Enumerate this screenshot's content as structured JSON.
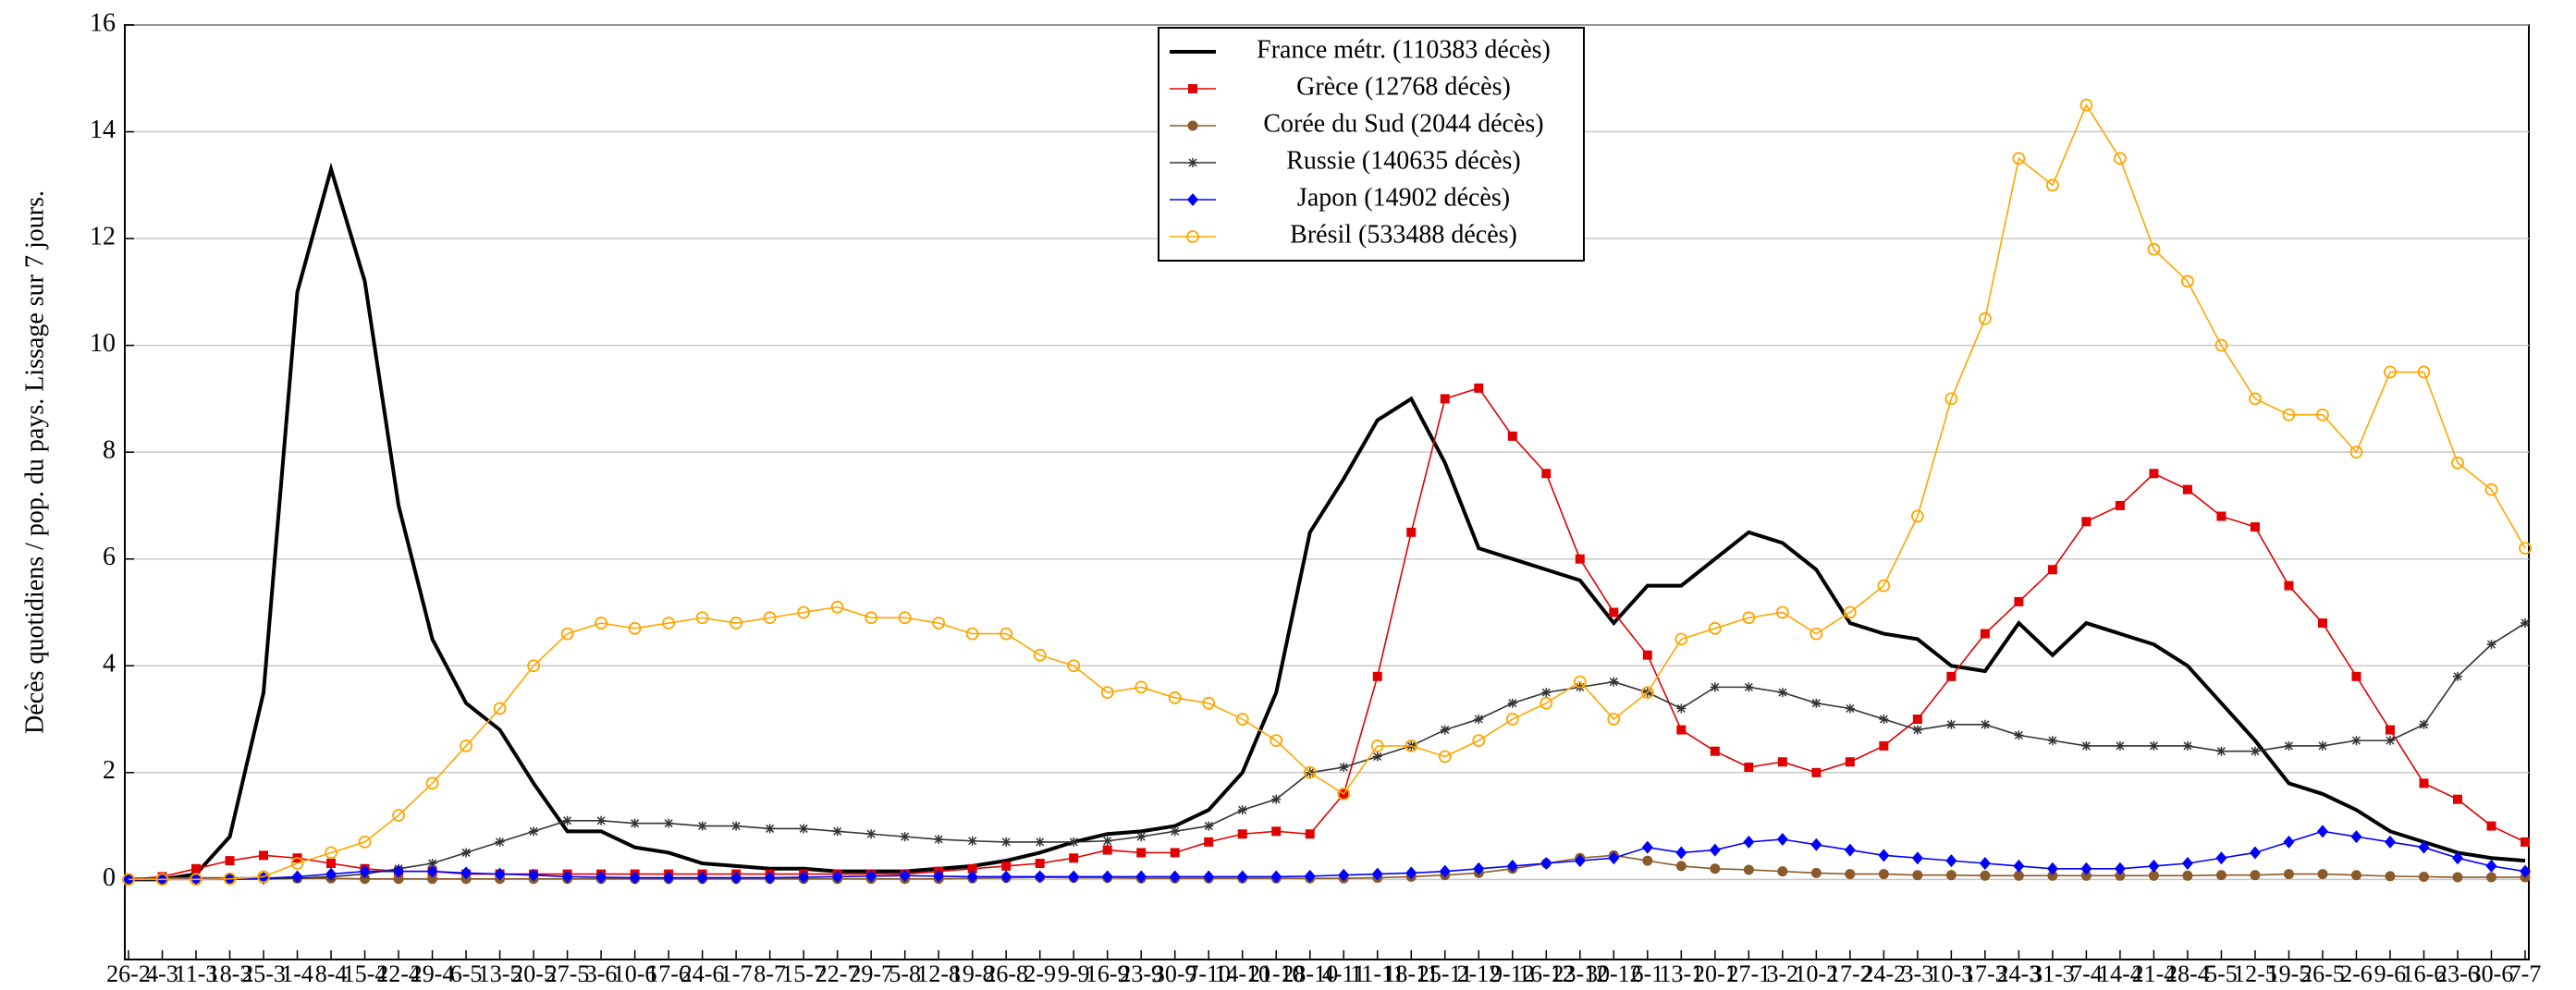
{
  "chart_data": {
    "type": "line",
    "y_label": "Décès quotidiens / pop. du pays. Lissage sur 7 jours.",
    "categories": [
      "26-2",
      "4-3",
      "11-3",
      "18-3",
      "25-3",
      "1-4",
      "8-4",
      "15-4",
      "22-4",
      "29-4",
      "6-5",
      "13-5",
      "20-5",
      "27-5",
      "3-6",
      "10-6",
      "17-6",
      "24-6",
      "1-7",
      "8-7",
      "15-7",
      "22-7",
      "29-7",
      "5-8",
      "12-8",
      "19-8",
      "26-8",
      "2-9",
      "9-9",
      "16-9",
      "23-9",
      "30-9",
      "7-10",
      "14-10",
      "21-10",
      "28-10",
      "4-11",
      "11-11",
      "18-11",
      "25-11",
      "2-12",
      "9-12",
      "16-12",
      "23-12",
      "30-12",
      "6-1",
      "13-1",
      "20-1",
      "27-1",
      "3-2",
      "10-2",
      "17-2",
      "24-2",
      "3-3",
      "10-3",
      "17-3",
      "24-3",
      "31-3",
      "7-4",
      "14-4",
      "21-4",
      "28-4",
      "5-5",
      "12-5",
      "19-5",
      "26-5",
      "2-6",
      "9-6",
      "16-6",
      "23-6",
      "30-6",
      "7-7"
    ],
    "ylim": [
      -1.5,
      16
    ],
    "yticks": [
      0,
      2,
      4,
      6,
      8,
      10,
      12,
      14,
      16
    ],
    "grid": true,
    "legend": "top",
    "series": [
      {
        "name": "France métr. (110383 décès)",
        "color": "#000000",
        "marker": "none",
        "values": [
          0,
          0,
          0.1,
          0.8,
          3.5,
          11,
          13.3,
          11.2,
          7,
          4.5,
          3.3,
          2.8,
          1.8,
          0.9,
          0.9,
          0.6,
          0.5,
          0.3,
          0.25,
          0.2,
          0.2,
          0.15,
          0.15,
          0.15,
          0.2,
          0.25,
          0.35,
          0.5,
          0.7,
          0.85,
          0.9,
          1.0,
          1.3,
          2.0,
          3.5,
          6.5,
          7.5,
          8.6,
          9.0,
          7.8,
          6.2,
          6.0,
          5.8,
          5.6,
          4.8,
          5.5,
          5.5,
          6.0,
          6.5,
          6.3,
          5.8,
          4.8,
          4.6,
          4.5,
          4.0,
          3.9,
          4.8,
          4.2,
          4.8,
          4.6,
          4.4,
          4.0,
          3.3,
          2.6,
          1.8,
          1.6,
          1.3,
          0.9,
          0.7,
          0.5,
          0.4,
          0.35
        ]
      },
      {
        "name": "Grèce (12768 décès)",
        "color": "#e00000",
        "marker": "square",
        "values": [
          0,
          0.05,
          0.2,
          0.35,
          0.45,
          0.4,
          0.3,
          0.2,
          0.15,
          0.15,
          0.1,
          0.1,
          0.1,
          0.1,
          0.1,
          0.1,
          0.1,
          0.1,
          0.1,
          0.1,
          0.1,
          0.1,
          0.1,
          0.1,
          0.15,
          0.2,
          0.25,
          0.3,
          0.4,
          0.55,
          0.5,
          0.5,
          0.7,
          0.85,
          0.9,
          0.85,
          1.6,
          3.8,
          6.5,
          9.0,
          9.2,
          8.3,
          7.6,
          6.0,
          5.0,
          4.2,
          2.8,
          2.4,
          2.1,
          2.2,
          2.0,
          2.2,
          2.5,
          3.0,
          3.8,
          4.6,
          5.2,
          5.8,
          6.7,
          7.0,
          7.6,
          7.3,
          6.8,
          6.6,
          5.5,
          4.8,
          3.8,
          2.8,
          1.8,
          1.5,
          1.0,
          0.7
        ]
      },
      {
        "name": "Corée du Sud (2044 décès)",
        "color": "#8b5a2b",
        "marker": "circle",
        "values": [
          0,
          0.02,
          0.03,
          0.03,
          0.03,
          0.02,
          0.02,
          0.01,
          0.01,
          0.01,
          0.01,
          0.01,
          0.01,
          0.01,
          0.01,
          0.01,
          0.01,
          0.01,
          0.01,
          0.01,
          0.01,
          0.01,
          0.01,
          0.01,
          0.01,
          0.02,
          0.03,
          0.04,
          0.03,
          0.03,
          0.02,
          0.02,
          0.02,
          0.02,
          0.02,
          0.02,
          0.02,
          0.03,
          0.05,
          0.08,
          0.12,
          0.2,
          0.3,
          0.4,
          0.45,
          0.35,
          0.25,
          0.2,
          0.18,
          0.15,
          0.12,
          0.1,
          0.1,
          0.08,
          0.08,
          0.07,
          0.07,
          0.07,
          0.07,
          0.07,
          0.07,
          0.07,
          0.08,
          0.08,
          0.1,
          0.1,
          0.08,
          0.06,
          0.05,
          0.04,
          0.04,
          0.04
        ]
      },
      {
        "name": "Russie (140635 décès)",
        "color": "#333333",
        "marker": "star",
        "values": [
          0,
          0,
          0,
          0,
          0.01,
          0.02,
          0.05,
          0.1,
          0.2,
          0.3,
          0.5,
          0.7,
          0.9,
          1.1,
          1.1,
          1.05,
          1.05,
          1.0,
          1.0,
          0.95,
          0.95,
          0.9,
          0.85,
          0.8,
          0.75,
          0.72,
          0.7,
          0.7,
          0.7,
          0.72,
          0.8,
          0.9,
          1.0,
          1.3,
          1.5,
          2.0,
          2.1,
          2.3,
          2.5,
          2.8,
          3.0,
          3.3,
          3.5,
          3.6,
          3.7,
          3.5,
          3.2,
          3.6,
          3.6,
          3.5,
          3.3,
          3.2,
          3.0,
          2.8,
          2.9,
          2.9,
          2.7,
          2.6,
          2.5,
          2.5,
          2.5,
          2.5,
          2.4,
          2.4,
          2.5,
          2.5,
          2.6,
          2.6,
          2.9,
          3.8,
          4.4,
          4.8
        ]
      },
      {
        "name": "Japon (14902 décès)",
        "color": "#0000ff",
        "marker": "diamond",
        "values": [
          0,
          0,
          0.01,
          0.01,
          0.02,
          0.05,
          0.1,
          0.15,
          0.15,
          0.15,
          0.12,
          0.1,
          0.08,
          0.05,
          0.04,
          0.03,
          0.03,
          0.03,
          0.03,
          0.03,
          0.04,
          0.05,
          0.06,
          0.07,
          0.06,
          0.05,
          0.05,
          0.05,
          0.05,
          0.05,
          0.05,
          0.05,
          0.05,
          0.05,
          0.05,
          0.06,
          0.08,
          0.1,
          0.12,
          0.15,
          0.2,
          0.25,
          0.3,
          0.35,
          0.4,
          0.6,
          0.5,
          0.55,
          0.7,
          0.75,
          0.65,
          0.55,
          0.45,
          0.4,
          0.35,
          0.3,
          0.25,
          0.2,
          0.2,
          0.2,
          0.25,
          0.3,
          0.4,
          0.5,
          0.7,
          0.9,
          0.8,
          0.7,
          0.6,
          0.4,
          0.25,
          0.15
        ]
      },
      {
        "name": "Brésil (533488 décès)",
        "color": "#ffa500",
        "marker": "open-circle",
        "values": [
          0,
          0,
          0,
          0.01,
          0.05,
          0.3,
          0.5,
          0.7,
          1.2,
          1.8,
          2.5,
          3.2,
          4.0,
          4.6,
          4.8,
          4.7,
          4.8,
          4.9,
          4.8,
          4.9,
          5.0,
          5.1,
          4.9,
          4.9,
          4.8,
          4.6,
          4.6,
          4.2,
          4.0,
          3.5,
          3.6,
          3.4,
          3.3,
          3.0,
          2.6,
          2.0,
          1.6,
          2.5,
          2.5,
          2.3,
          2.6,
          3.0,
          3.3,
          3.7,
          3.0,
          3.5,
          4.5,
          4.7,
          4.9,
          5.0,
          4.6,
          5.0,
          5.5,
          6.8,
          9.0,
          10.5,
          13.5,
          13.0,
          14.5,
          13.5,
          11.8,
          11.2,
          10.0,
          9.0,
          8.7,
          8.7,
          8.0,
          9.5,
          9.5,
          7.8,
          7.3,
          6.2
        ]
      }
    ]
  }
}
